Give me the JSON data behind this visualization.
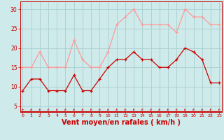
{
  "x": [
    0,
    1,
    2,
    3,
    4,
    5,
    6,
    7,
    8,
    9,
    10,
    11,
    12,
    13,
    14,
    15,
    16,
    17,
    18,
    19,
    20,
    21,
    22,
    23
  ],
  "wind_mean": [
    9,
    12,
    12,
    9,
    9,
    9,
    13,
    9,
    9,
    12,
    15,
    17,
    17,
    19,
    17,
    17,
    15,
    15,
    17,
    20,
    19,
    17,
    11,
    11
  ],
  "wind_gust": [
    15,
    15,
    19,
    15,
    15,
    15,
    22,
    17,
    15,
    15,
    19,
    26,
    28,
    30,
    26,
    26,
    26,
    26,
    24,
    30,
    28,
    28,
    26,
    26
  ],
  "bg_color": "#ceeaea",
  "grid_color": "#aacece",
  "mean_color": "#cc0000",
  "gust_color": "#ff9999",
  "axis_color": "#cc0000",
  "xlabel": "Vent moyen/en rafales ( km/h )",
  "xlabel_fontsize": 7,
  "yticks": [
    5,
    10,
    15,
    20,
    25,
    30
  ],
  "xticks": [
    0,
    1,
    2,
    3,
    4,
    5,
    6,
    7,
    8,
    9,
    10,
    11,
    12,
    13,
    14,
    15,
    16,
    17,
    18,
    19,
    20,
    21,
    22,
    23
  ],
  "ylim": [
    3.5,
    32
  ],
  "xlim": [
    -0.3,
    23.3
  ]
}
